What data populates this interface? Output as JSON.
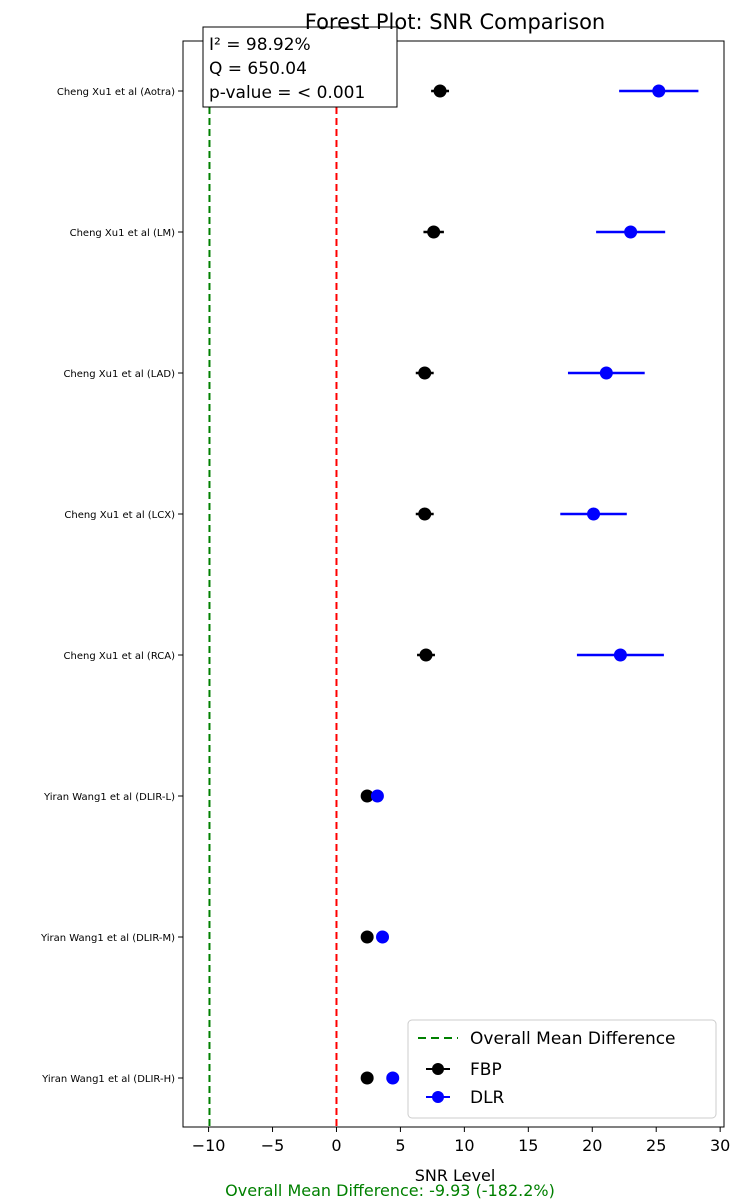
{
  "chart_data": {
    "type": "scatter",
    "title": "Forest Plot: SNR Comparison",
    "xlabel": "SNR Level",
    "ylabel": "",
    "xlim": [
      -12,
      30.3
    ],
    "xticks": [
      -10,
      -5,
      0,
      5,
      10,
      15,
      20,
      25,
      30
    ],
    "xtick_labels": [
      "−10",
      "−5",
      "0",
      "5",
      "10",
      "15",
      "20",
      "25",
      "30"
    ],
    "categories": [
      "Cheng Xu1 et al (Aotra)",
      "Cheng Xu1 et al (LM)",
      "Cheng Xu1 et al (LAD)",
      "Cheng Xu1 et al (LCX)",
      "Cheng Xu1 et al (RCA)",
      "Yiran Wang1 et al (DLIR-L)",
      "Yiran Wang1 et al (DLIR-M)",
      "Yiran Wang1 et al (DLIR-H)"
    ],
    "series": [
      {
        "name": "FBP",
        "color": "#000000",
        "values": [
          8.1,
          7.6,
          6.9,
          6.9,
          7.0,
          2.4,
          2.4,
          2.4
        ],
        "ci_low": [
          7.4,
          6.8,
          6.2,
          6.2,
          6.3,
          2.4,
          2.4,
          2.4
        ],
        "ci_high": [
          8.8,
          8.4,
          7.6,
          7.6,
          7.7,
          2.4,
          2.4,
          2.4
        ]
      },
      {
        "name": "DLR",
        "color": "#0000ff",
        "values": [
          25.2,
          23.0,
          21.1,
          20.1,
          22.2,
          3.2,
          3.6,
          4.4
        ],
        "ci_low": [
          22.1,
          20.3,
          18.1,
          17.5,
          18.8,
          3.2,
          3.6,
          4.4
        ],
        "ci_high": [
          28.3,
          25.7,
          24.1,
          22.7,
          25.6,
          3.2,
          3.6,
          4.4
        ]
      }
    ],
    "reference_lines": [
      {
        "name": "Overall Mean Difference",
        "x": -9.93,
        "color": "#008000",
        "style": "dashed"
      },
      {
        "x": 0,
        "color": "#ff0000",
        "style": "dashed"
      }
    ],
    "stats_box": [
      "I² = 98.92%",
      "Q = 650.04",
      "p-value = < 0.001"
    ],
    "legend": {
      "position": "lower-right",
      "entries": [
        "Overall Mean Difference",
        "FBP",
        "DLR"
      ]
    },
    "footer": {
      "text": "Overall Mean Difference: -9.93 (-182.2%)",
      "color": "#008000"
    },
    "grid": false
  }
}
